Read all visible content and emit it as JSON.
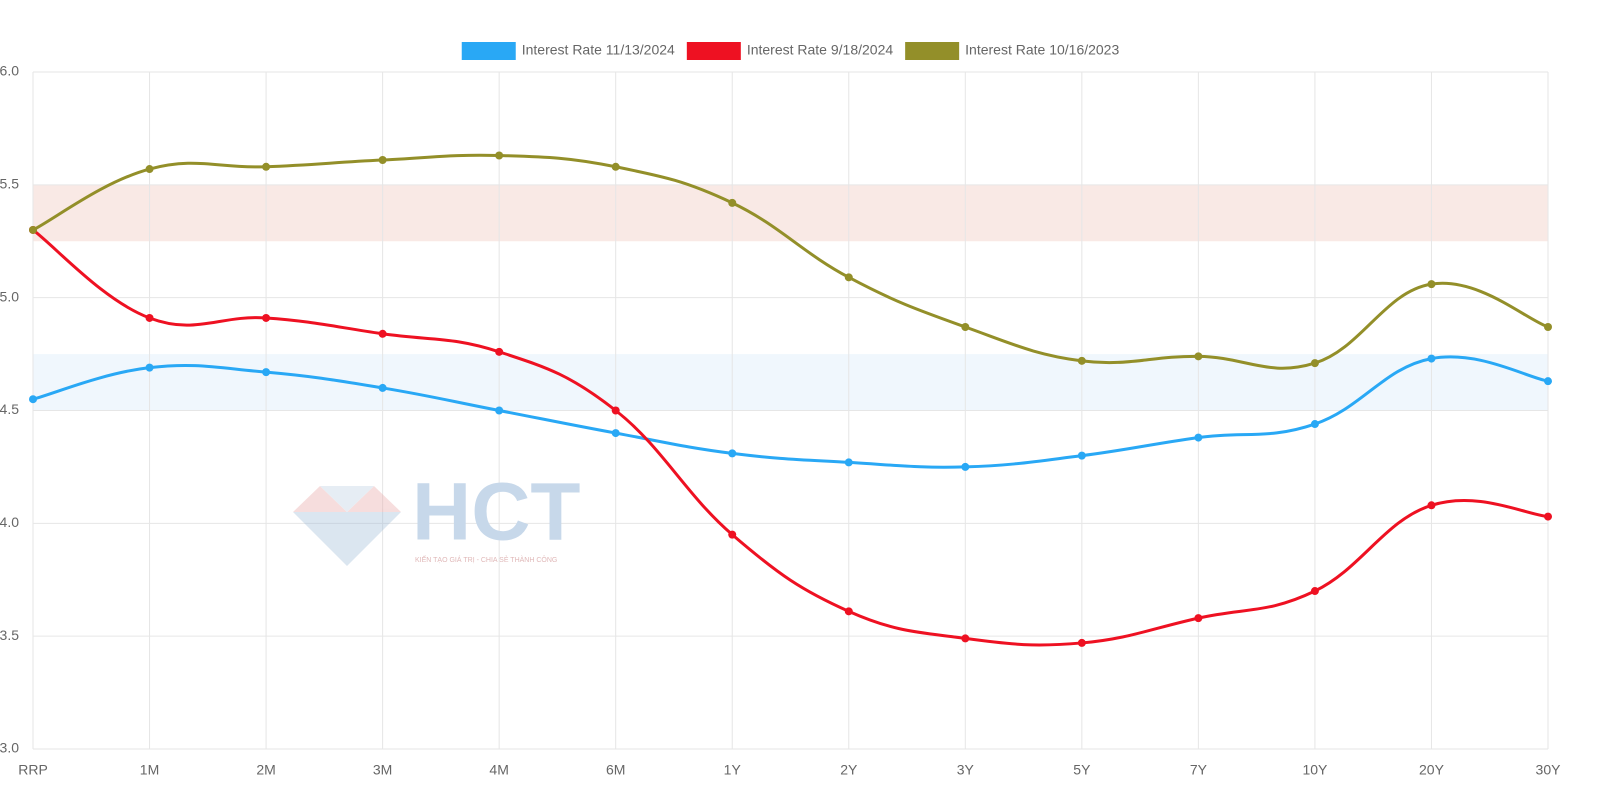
{
  "chart_data": {
    "type": "line",
    "categories": [
      "RRP",
      "1M",
      "2M",
      "3M",
      "4M",
      "6M",
      "1Y",
      "2Y",
      "3Y",
      "5Y",
      "7Y",
      "10Y",
      "20Y",
      "30Y"
    ],
    "series": [
      {
        "name": "Interest Rate 11/13/2024",
        "color": "#29a8f5",
        "values": [
          4.55,
          4.69,
          4.67,
          4.6,
          4.5,
          4.4,
          4.31,
          4.27,
          4.25,
          4.3,
          4.38,
          4.44,
          4.73,
          4.63
        ]
      },
      {
        "name": "Interest Rate 9/18/2024",
        "color": "#ee1122",
        "values": [
          5.3,
          4.91,
          4.91,
          4.84,
          4.76,
          4.5,
          3.95,
          3.61,
          3.49,
          3.47,
          3.58,
          3.7,
          4.08,
          4.03
        ]
      },
      {
        "name": "Interest Rate 10/16/2023",
        "color": "#938f29",
        "values": [
          5.3,
          5.57,
          5.58,
          5.61,
          5.63,
          5.58,
          5.42,
          5.09,
          4.87,
          4.72,
          4.74,
          4.71,
          5.06,
          4.87
        ]
      }
    ],
    "bands": [
      {
        "from": 5.25,
        "to": 5.5,
        "color": "#f9e9e5"
      },
      {
        "from": 4.5,
        "to": 4.75,
        "color": "#f0f7fd"
      }
    ],
    "ylim": [
      3,
      6
    ],
    "yticks": [
      {
        "value": 3,
        "label": "3.0"
      },
      {
        "value": 3.5,
        "label": "3.5"
      },
      {
        "value": 4,
        "label": "4.0"
      },
      {
        "value": 4.5,
        "label": "4.5"
      },
      {
        "value": 5,
        "label": "5.0"
      },
      {
        "value": 5.5,
        "label": "5.5"
      },
      {
        "value": 6,
        "label": "6.0"
      }
    ],
    "grid": true,
    "legend_position": "top",
    "watermark": {
      "title": "HCT",
      "tagline": "KIẾN TẠO GIÁ TRỊ - CHIA SẺ THÀNH CÔNG"
    }
  }
}
